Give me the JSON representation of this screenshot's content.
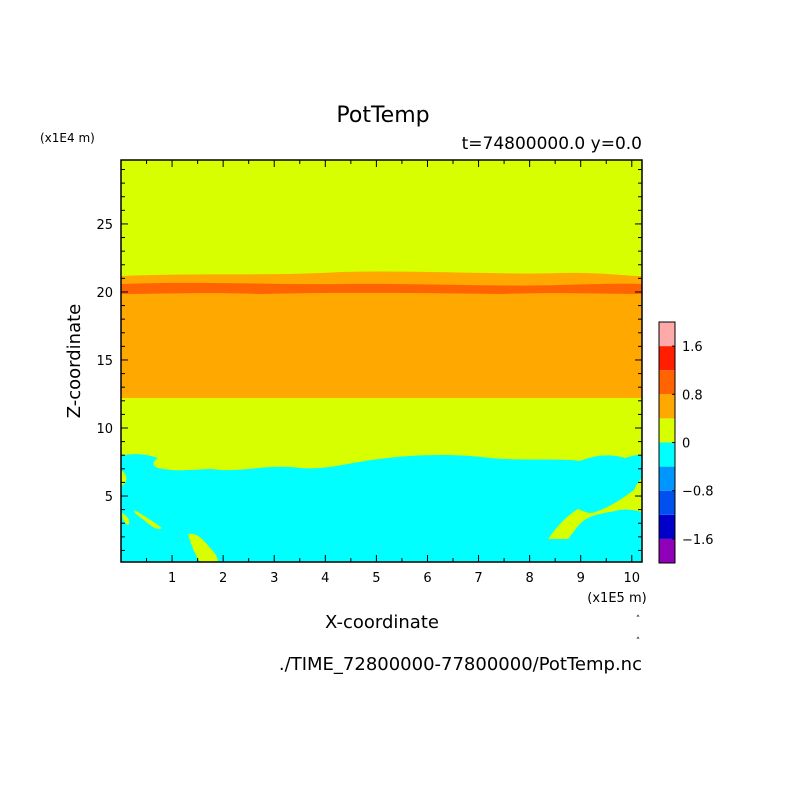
{
  "chart_data": {
    "type": "heatmap",
    "title": "PotTemp",
    "subtitle": "t=74800000.0 y=0.0",
    "xlabel": "X-coordinate",
    "ylabel": "Z-coordinate",
    "x_scale_label": "(x1E5 m)",
    "y_scale_label": "(x1E4 m)",
    "x_ticks": [
      "1",
      "2",
      "3",
      "4",
      "5",
      "6",
      "7",
      "8",
      "9",
      "10"
    ],
    "y_ticks": [
      "5",
      "10",
      "15",
      "20",
      "25"
    ],
    "xlim": [
      0,
      10.2
    ],
    "ylim": [
      0.15,
      29.7
    ],
    "footer": "./TIME_72800000-77800000/PotTemp.nc",
    "colorbar": {
      "levels_bottom_to_top": [
        {
          "color": "#8f00b8"
        },
        {
          "color": "#0000c8"
        },
        {
          "color": "#0050f0"
        },
        {
          "color": "#0096ff"
        },
        {
          "color": "#00ffff"
        },
        {
          "color": "#d7ff00"
        },
        {
          "color": "#ffa800"
        },
        {
          "color": "#ff6400"
        },
        {
          "color": "#ff1e00"
        },
        {
          "color": "#ffaaaa"
        }
      ],
      "labels": [
        "-1.6",
        "-0.8",
        "0",
        "0.8",
        "1.6"
      ]
    },
    "bands": [
      {
        "z_min": 8.1,
        "z_max": 12.3,
        "level": 0
      },
      {
        "z_min": 12.3,
        "z_max": 19.9,
        "level": 0.8
      },
      {
        "z_min": 19.9,
        "z_max": 20.6,
        "level": 1.2
      },
      {
        "z_min": 20.6,
        "z_max": 21.4,
        "level": 0.8
      },
      {
        "z_min": 21.4,
        "z_max": 29.7,
        "level": 0
      }
    ],
    "lower_layer": {
      "level": -0.4,
      "top_z_range": [
        6.9,
        8.3
      ]
    }
  }
}
